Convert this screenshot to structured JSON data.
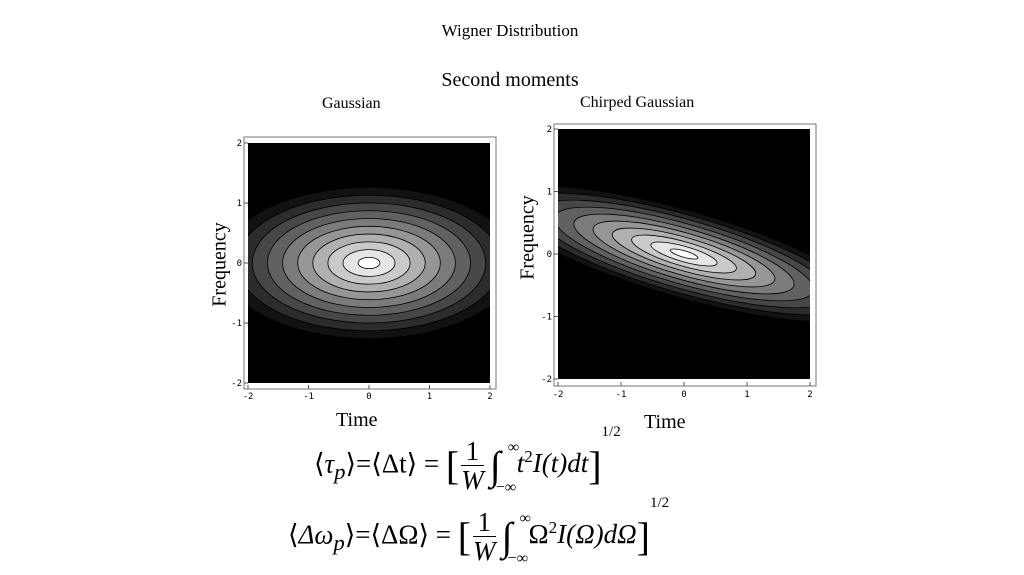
{
  "slide": {
    "title": "Wigner Distribution",
    "subtitle": "Second moments"
  },
  "plots": [
    {
      "title": "Gaussian",
      "xlabel": "Time",
      "ylabel": "Frequency",
      "xticks": [
        "-2",
        "-1",
        "0",
        "1",
        "2"
      ],
      "yticks": [
        "2",
        "1",
        "0",
        "-1",
        "-2"
      ]
    },
    {
      "title": "Chirped Gaussian",
      "xlabel": "Time",
      "ylabel": "Frequency",
      "xticks": [
        "-2",
        "-1",
        "0",
        "1",
        "2"
      ],
      "yticks": [
        "2",
        "1",
        "0",
        "-1",
        "-2"
      ]
    }
  ],
  "equations": {
    "line1": {
      "lhs_tau": "τ",
      "lhs_sub": "p",
      "lhs_mid": "Δt",
      "num": "1",
      "den": "W",
      "int_upper": "∞",
      "int_lower": "−∞",
      "integrand": "t",
      "integrand_exp": "2",
      "func": "I(t)dt",
      "outer_exp": "1/2"
    },
    "line2": {
      "lhs_omega": "Δω",
      "lhs_sub": "p",
      "lhs_mid": "ΔΩ",
      "num": "1",
      "den": "W",
      "int_upper": "∞",
      "int_lower": "−∞",
      "integrand": "Ω",
      "integrand_exp": "2",
      "func": "I(Ω)dΩ",
      "outer_exp": "1/2"
    }
  },
  "colors": {
    "plot_background": "#000000",
    "contour_peak": "#ffffff"
  }
}
